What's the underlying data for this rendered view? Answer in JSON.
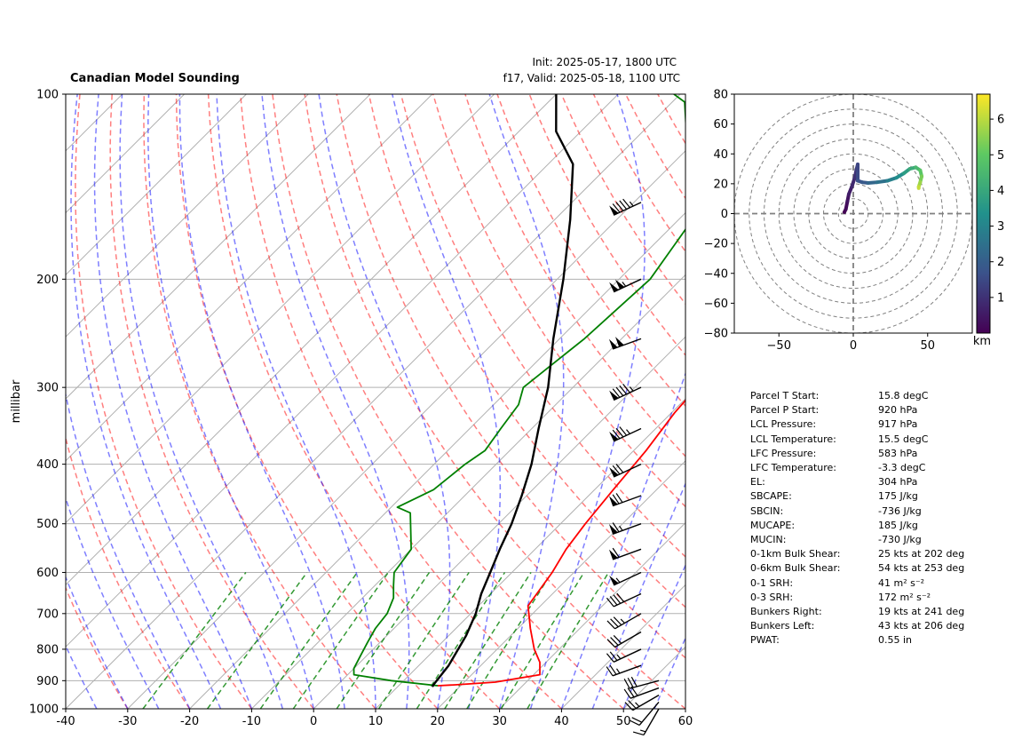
{
  "header": {
    "title": "Canadian Model Sounding",
    "init": "Init: 2025-05-17, 1800 UTC",
    "valid": "f17, Valid: 2025-05-18, 1100 UTC"
  },
  "chart_data": [
    {
      "type": "line",
      "subtype": "skew-t log-p",
      "title": "Canadian Model Sounding",
      "ylabel": "millibar",
      "xlabel": "",
      "xlim": [
        -40,
        60
      ],
      "ylim": [
        1000,
        100
      ],
      "y_scale": "log",
      "x_ticks": [
        -40,
        -30,
        -20,
        -10,
        0,
        10,
        20,
        30,
        40,
        50,
        60
      ],
      "y_ticks": [
        100,
        200,
        300,
        400,
        500,
        600,
        700,
        800,
        900,
        1000
      ],
      "grid": true,
      "series": [
        {
          "name": "temperature",
          "color": "#ff0000",
          "points": [
            [
              16.3,
              917
            ],
            [
              19,
              914
            ],
            [
              25,
              905
            ],
            [
              31,
              880
            ],
            [
              29,
              840
            ],
            [
              26,
              800
            ],
            [
              22,
              740
            ],
            [
              18,
              680
            ],
            [
              16.5,
              600
            ],
            [
              15,
              550
            ],
            [
              14,
              500
            ],
            [
              13,
              440
            ],
            [
              12,
              380
            ],
            [
              10.5,
              330
            ],
            [
              10,
              300
            ],
            [
              7,
              255
            ],
            [
              6,
              232
            ],
            [
              5,
              210
            ],
            [
              4,
              185
            ],
            [
              8,
              170
            ],
            [
              12,
              155
            ],
            [
              17,
              140
            ],
            [
              22,
              120
            ],
            [
              30,
              105
            ],
            [
              33,
              100
            ]
          ]
        },
        {
          "name": "dewpoint",
          "color": "#008000",
          "points": [
            [
              16.3,
              917
            ],
            [
              8,
              900
            ],
            [
              1,
              880
            ],
            [
              0,
              860
            ],
            [
              -1,
              820
            ],
            [
              -2,
              780
            ],
            [
              -3,
              740
            ],
            [
              -3.5,
              700
            ],
            [
              -5,
              660
            ],
            [
              -7,
              630
            ],
            [
              -9,
              600
            ],
            [
              -10,
              550
            ],
            [
              -16,
              480
            ],
            [
              -19,
              470
            ],
            [
              -16,
              440
            ],
            [
              -15,
              400
            ],
            [
              -14,
              380
            ],
            [
              -15,
              350
            ],
            [
              -16,
              320
            ],
            [
              -18,
              300
            ],
            [
              -16,
              250
            ],
            [
              -15,
              200
            ],
            [
              -19,
              145
            ],
            [
              -33,
              115
            ],
            [
              -38,
              103
            ],
            [
              -41,
              100
            ]
          ]
        },
        {
          "name": "parcel",
          "color": "#000000",
          "points": [
            [
              15.8,
              920
            ],
            [
              15.5,
              917
            ],
            [
              14.8,
              850
            ],
            [
              12.8,
              760
            ],
            [
              10.8,
              700
            ],
            [
              8.5,
              650
            ],
            [
              6.5,
              600
            ],
            [
              4.3,
              550
            ],
            [
              2.1,
              500
            ],
            [
              -0.8,
              450
            ],
            [
              -4.3,
              400
            ],
            [
              -8.9,
              350
            ],
            [
              -14,
              300
            ],
            [
              -21,
              250
            ],
            [
              -29,
              200
            ],
            [
              -37.5,
              160
            ],
            [
              -46,
              130
            ],
            [
              -54,
              115
            ],
            [
              -60,
              100
            ]
          ]
        }
      ],
      "reference_lines": {
        "dry_adiabats_color": "#ff0000",
        "moist_adiabats_color": "#0000ff",
        "mixing_ratio_color": "#008000",
        "isotherm_color": "#808080"
      },
      "wind_barbs": [
        {
          "pressure": 1000,
          "speed_kts": 15,
          "direction_deg": 210
        },
        {
          "pressure": 975,
          "speed_kts": 20,
          "direction_deg": 220
        },
        {
          "pressure": 950,
          "speed_kts": 25,
          "direction_deg": 240
        },
        {
          "pressure": 925,
          "speed_kts": 30,
          "direction_deg": 250
        },
        {
          "pressure": 900,
          "speed_kts": 30,
          "direction_deg": 255
        },
        {
          "pressure": 850,
          "speed_kts": 25,
          "direction_deg": 250
        },
        {
          "pressure": 800,
          "speed_kts": 25,
          "direction_deg": 245
        },
        {
          "pressure": 750,
          "speed_kts": 30,
          "direction_deg": 240
        },
        {
          "pressure": 700,
          "speed_kts": 35,
          "direction_deg": 240
        },
        {
          "pressure": 650,
          "speed_kts": 40,
          "direction_deg": 245
        },
        {
          "pressure": 600,
          "speed_kts": 55,
          "direction_deg": 245
        },
        {
          "pressure": 550,
          "speed_kts": 60,
          "direction_deg": 250
        },
        {
          "pressure": 500,
          "speed_kts": 65,
          "direction_deg": 250
        },
        {
          "pressure": 450,
          "speed_kts": 70,
          "direction_deg": 250
        },
        {
          "pressure": 400,
          "speed_kts": 70,
          "direction_deg": 245
        },
        {
          "pressure": 350,
          "speed_kts": 85,
          "direction_deg": 245
        },
        {
          "pressure": 300,
          "speed_kts": 95,
          "direction_deg": 245
        },
        {
          "pressure": 250,
          "speed_kts": 100,
          "direction_deg": 250
        },
        {
          "pressure": 200,
          "speed_kts": 105,
          "direction_deg": 245
        },
        {
          "pressure": 150,
          "speed_kts": 95,
          "direction_deg": 245
        }
      ]
    },
    {
      "type": "line",
      "subtype": "hodograph",
      "xlim": [
        -80,
        80
      ],
      "ylim": [
        -80,
        80
      ],
      "x_ticks": [
        -50,
        0,
        50
      ],
      "y_ticks": [
        -80,
        -60,
        -40,
        -20,
        0,
        20,
        40,
        60,
        80
      ],
      "rings": [
        10,
        20,
        30,
        40,
        50,
        60,
        70,
        80
      ],
      "colorbar": {
        "label": "km",
        "ticks": [
          1,
          2,
          3,
          4,
          5,
          6
        ],
        "range": [
          0,
          6.7
        ],
        "colormap": [
          "#440154",
          "#3b528b",
          "#21918c",
          "#5ec962",
          "#fde725"
        ]
      },
      "points": [
        [
          -6,
          1,
          0
        ],
        [
          -5,
          3,
          0.2
        ],
        [
          -4,
          8,
          0.4
        ],
        [
          -3,
          13,
          0.6
        ],
        [
          -1,
          18,
          0.8
        ],
        [
          1,
          24,
          1.0
        ],
        [
          2,
          29,
          1.2
        ],
        [
          3,
          33,
          1.4
        ],
        [
          3,
          27,
          1.5
        ],
        [
          3,
          22,
          1.7
        ],
        [
          6,
          21,
          1.9
        ],
        [
          10,
          20.5,
          2.2
        ],
        [
          16,
          21,
          2.5
        ],
        [
          23,
          22,
          2.9
        ],
        [
          29,
          24,
          3.3
        ],
        [
          34,
          27,
          3.7
        ],
        [
          38,
          30,
          4.1
        ],
        [
          42,
          31,
          4.5
        ],
        [
          45,
          29,
          4.9
        ],
        [
          46,
          25,
          5.3
        ],
        [
          45,
          21,
          5.7
        ],
        [
          44,
          18,
          6.1
        ],
        [
          44,
          17,
          6.6
        ]
      ]
    }
  ],
  "stats": [
    {
      "label": "Parcel T Start:",
      "value": "15.8 degC"
    },
    {
      "label": "Parcel P Start:",
      "value": "920 hPa"
    },
    {
      "label": "LCL Pressure:",
      "value": "917 hPa"
    },
    {
      "label": "LCL Temperature:",
      "value": "15.5 degC"
    },
    {
      "label": "LFC Pressure:",
      "value": "583 hPa"
    },
    {
      "label": "LFC Temperature:",
      "value": "-3.3 degC"
    },
    {
      "label": "EL:",
      "value": "304 hPa"
    },
    {
      "label": "SBCAPE:",
      "value": "175 J/kg"
    },
    {
      "label": "SBCIN:",
      "value": "-736 J/kg"
    },
    {
      "label": "MUCAPE:",
      "value": "185 J/kg"
    },
    {
      "label": "MUCIN:",
      "value": "-730 J/kg"
    },
    {
      "label": "0-1km Bulk Shear:",
      "value": "25 kts at 202 deg"
    },
    {
      "label": "0-6km Bulk Shear:",
      "value": "54 kts at 253 deg"
    },
    {
      "label": "0-1 SRH:",
      "value": "41 m² s⁻²"
    },
    {
      "label": "0-3 SRH:",
      "value": "172 m² s⁻²"
    },
    {
      "label": "Bunkers Right:",
      "value": "19 kts at 241 deg"
    },
    {
      "label": "Bunkers Left:",
      "value": "43 kts at 206 deg"
    },
    {
      "label": "PWAT:",
      "value": "0.55 in"
    }
  ]
}
